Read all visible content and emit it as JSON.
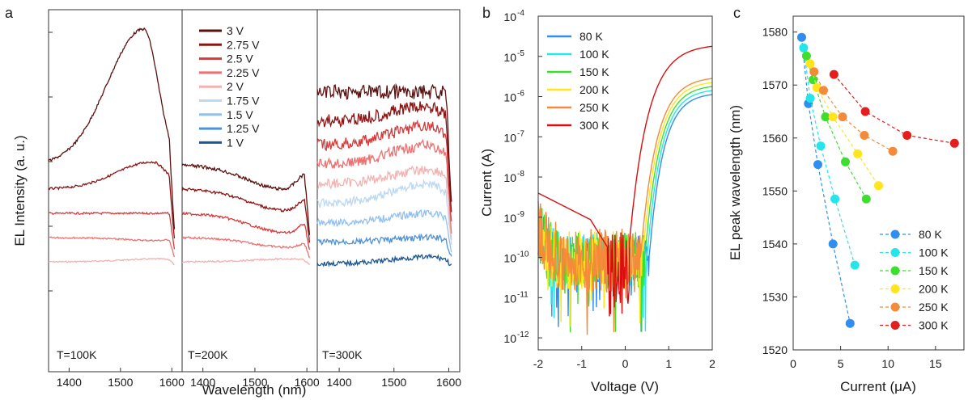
{
  "panel_labels": [
    "a",
    "b",
    "c"
  ],
  "chart_data": [
    {
      "type": "line",
      "panel": "a",
      "xlabel": "Wavelength (nm)",
      "ylabel": "EL Intensity (a. u.)",
      "x_ticks": [
        "1400",
        "1500",
        "1600"
      ],
      "xlim": [
        1360,
        1620
      ],
      "subpanels": [
        {
          "label": "T=100K",
          "voltages": [
            "2 V",
            "2.25 V",
            "2.5 V",
            "2.75 V",
            "3 V"
          ],
          "peak_nm": [
            1575,
            1572,
            1568,
            1562,
            1545
          ],
          "rel_peak": [
            0.08,
            0.27,
            0.55,
            1.08,
            2.45
          ],
          "rel_base": [
            0.05,
            0.3,
            0.55,
            0.8,
            1.05
          ]
        },
        {
          "label": "T=200K",
          "voltages": [
            "2 V",
            "2.25 V",
            "2.5 V",
            "2.75 V",
            "3 V"
          ],
          "peak_nm": [
            1570,
            1565,
            1562,
            1560,
            1555
          ],
          "rel_peak": [
            0.08,
            0.2,
            0.35,
            0.58,
            0.8
          ],
          "rel_base": [
            0.05,
            0.3,
            0.55,
            0.8,
            1.05
          ]
        },
        {
          "label": "T=300K",
          "voltages": [
            "1 V",
            "1.25 V",
            "1.5 V",
            "1.75 V",
            "2 V",
            "2.25 V",
            "2.5 V",
            "2.75 V",
            "3 V"
          ],
          "peak_nm": [
            1568,
            1567,
            1566,
            1565,
            1565,
            1564,
            1563,
            1562,
            1560
          ],
          "rel_peak": [
            0.1,
            0.3,
            0.55,
            0.85,
            1.0,
            1.25,
            1.45,
            1.65,
            1.8
          ],
          "rel_base": [
            0.03,
            0.25,
            0.45,
            0.65,
            0.85,
            1.05,
            1.25,
            1.5,
            1.8
          ]
        }
      ],
      "legend": [
        {
          "label": "3 V",
          "color": "#5c0f0f"
        },
        {
          "label": "2.75 V",
          "color": "#8e1414"
        },
        {
          "label": "2.5 V",
          "color": "#d63a3a"
        },
        {
          "label": "2.25 V",
          "color": "#ee7070"
        },
        {
          "label": "2 V",
          "color": "#f2b2b2"
        },
        {
          "label": "1.75 V",
          "color": "#bcd8f2"
        },
        {
          "label": "1.5 V",
          "color": "#92c0ee"
        },
        {
          "label": "1.25 V",
          "color": "#4e92d8"
        },
        {
          "label": "1 V",
          "color": "#1a5794"
        }
      ]
    },
    {
      "type": "line",
      "panel": "b",
      "xlabel": "Voltage (V)",
      "ylabel": "Current (A)",
      "yscale": "log",
      "xlim": [
        -2,
        2
      ],
      "ylim_exp": [
        -12.3,
        -4
      ],
      "x_ticks": [
        "-2",
        "-1",
        "0",
        "1",
        "2"
      ],
      "y_ticks": [
        {
          "base": "10",
          "exp": "-4"
        },
        {
          "base": "10",
          "exp": "-5"
        },
        {
          "base": "10",
          "exp": "-6"
        },
        {
          "base": "10",
          "exp": "-7"
        },
        {
          "base": "10",
          "exp": "-8"
        },
        {
          "base": "10",
          "exp": "-9"
        },
        {
          "base": "10",
          "exp": "-10"
        },
        {
          "base": "10",
          "exp": "-11"
        },
        {
          "base": "10",
          "exp": "-12"
        }
      ],
      "series": [
        {
          "name": "80 K",
          "color": "#2f8ff0",
          "onset_V": 0.55,
          "log_at_2V": -5.95
        },
        {
          "name": "100 K",
          "color": "#22e6ea",
          "onset_V": 0.5,
          "log_at_2V": -5.85
        },
        {
          "name": "150 K",
          "color": "#3ddf2e",
          "onset_V": 0.45,
          "log_at_2V": -5.75
        },
        {
          "name": "200 K",
          "color": "#ffe51a",
          "onset_V": 0.4,
          "log_at_2V": -5.65
        },
        {
          "name": "250 K",
          "color": "#f58a3a",
          "onset_V": 0.35,
          "log_at_2V": -5.55
        },
        {
          "name": "300 K",
          "color": "#d90f0f",
          "onset_V": 0.1,
          "log_at_2V": -4.75
        }
      ]
    },
    {
      "type": "scatter",
      "panel": "c",
      "xlabel": "Current (μA)",
      "ylabel": "EL peak wavelength (nm)",
      "xlim": [
        0,
        18
      ],
      "ylim": [
        1520,
        1583
      ],
      "x_ticks": [
        "0",
        "5",
        "10",
        "15"
      ],
      "y_ticks": [
        "1520",
        "1530",
        "1540",
        "1550",
        "1560",
        "1570",
        "1580"
      ],
      "series": [
        {
          "name": "80 K",
          "color": "#2f8ff0",
          "x": [
            0.9,
            1.6,
            2.6,
            4.2,
            6.0
          ],
          "y": [
            1579,
            1566.5,
            1555,
            1540,
            1525
          ]
        },
        {
          "name": "100 K",
          "color": "#22e6ea",
          "x": [
            1.1,
            1.8,
            2.9,
            4.4,
            6.5
          ],
          "y": [
            1577,
            1567.5,
            1558.5,
            1548.5,
            1536
          ]
        },
        {
          "name": "150 K",
          "color": "#3ddf2e",
          "x": [
            1.4,
            2.1,
            3.4,
            5.5,
            7.7
          ],
          "y": [
            1575.5,
            1571,
            1564,
            1555.5,
            1548.5
          ]
        },
        {
          "name": "200 K",
          "color": "#ffe51a",
          "x": [
            1.8,
            2.5,
            4.2,
            6.8,
            9.0
          ],
          "y": [
            1574,
            1569.5,
            1564,
            1557,
            1551
          ]
        },
        {
          "name": "250 K",
          "color": "#f58a3a",
          "x": [
            2.2,
            3.2,
            5.2,
            7.5,
            10.5
          ],
          "y": [
            1572.5,
            1569,
            1564,
            1560.5,
            1557.5
          ]
        },
        {
          "name": "300 K",
          "color": "#e51d1d",
          "x": [
            4.3,
            7.6,
            12.0,
            17.0
          ],
          "y": [
            1572,
            1565,
            1560.5,
            1559
          ]
        }
      ]
    }
  ]
}
